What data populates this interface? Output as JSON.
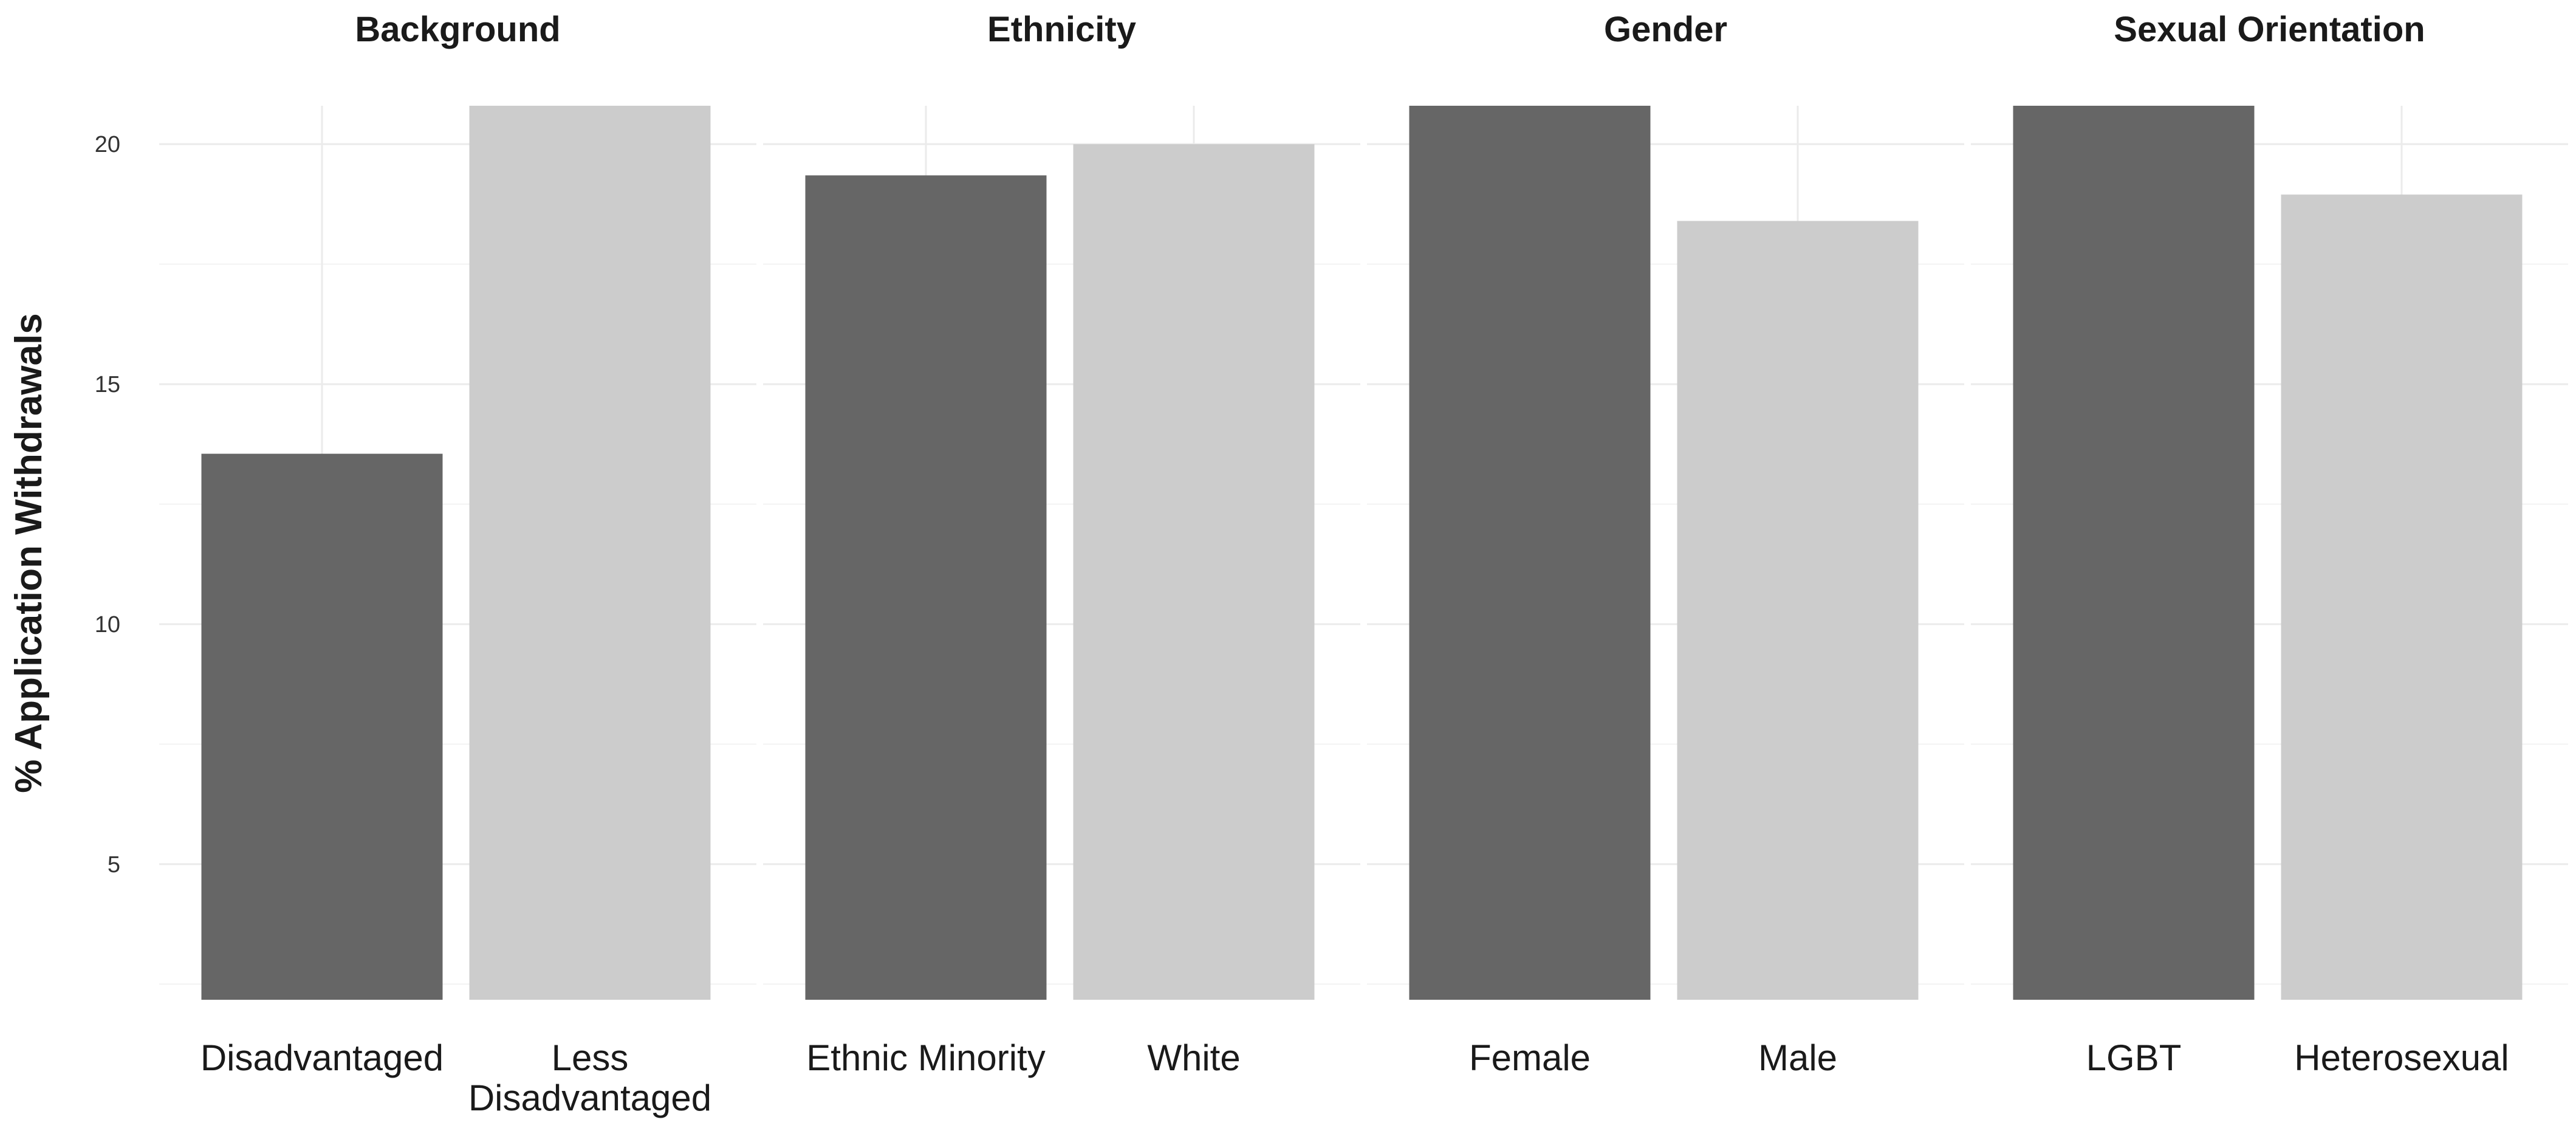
{
  "chart_data": {
    "type": "bar",
    "ylabel": "% Application Withdrawals",
    "ylim": [
      2.2,
      20.8
    ],
    "yticks": [
      5,
      10,
      15,
      20
    ],
    "grid": true,
    "colors": {
      "first": "#666666",
      "second": "#cccccc"
    },
    "facets": [
      {
        "title": "Background",
        "categories": [
          {
            "label_lines": [
              "Disadvantaged"
            ],
            "value": 13.55
          },
          {
            "label_lines": [
              "Less",
              "Disadvantaged"
            ],
            "value": 20.8
          }
        ]
      },
      {
        "title": "Ethnicity",
        "categories": [
          {
            "label_lines": [
              "Ethnic Minority"
            ],
            "value": 19.35
          },
          {
            "label_lines": [
              "White"
            ],
            "value": 20.0
          }
        ]
      },
      {
        "title": "Gender",
        "categories": [
          {
            "label_lines": [
              "Female"
            ],
            "value": 20.8
          },
          {
            "label_lines": [
              "Male"
            ],
            "value": 18.4
          }
        ]
      },
      {
        "title": "Sexual Orientation",
        "categories": [
          {
            "label_lines": [
              "LGBT"
            ],
            "value": 20.8
          },
          {
            "label_lines": [
              "Heterosexual"
            ],
            "value": 18.95
          }
        ]
      }
    ]
  }
}
